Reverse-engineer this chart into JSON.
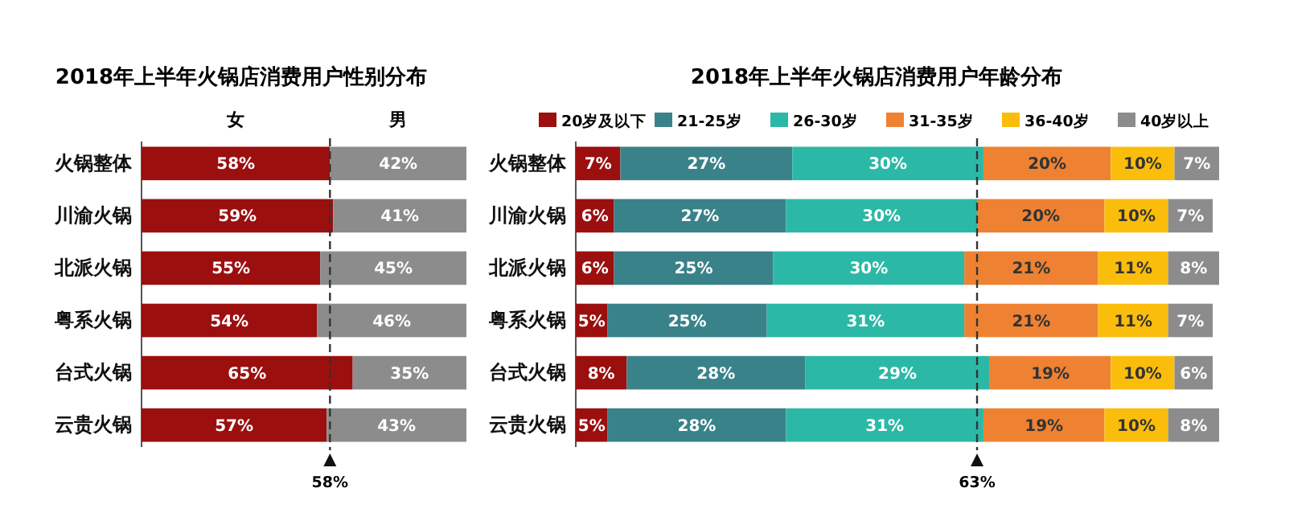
{
  "chart_data": [
    {
      "type": "bar",
      "orientation": "horizontal",
      "stacked": true,
      "title": "2018年上半年火锅店消费用户性别分布",
      "categories": [
        "火锅整体",
        "川渝火锅",
        "北派火锅",
        "粤系火锅",
        "台式火锅",
        "云贵火锅"
      ],
      "xlim": [
        0,
        100
      ],
      "tick_labels": "y",
      "series": [
        {
          "name": "女",
          "color": "#9b0f0f",
          "values": [
            58,
            59,
            55,
            54,
            65,
            57
          ],
          "value_labels": [
            "58%",
            "59%",
            "55%",
            "54%",
            "65%",
            "57%"
          ]
        },
        {
          "name": "男",
          "color": "#8c8c8c",
          "values": [
            42,
            41,
            45,
            46,
            35,
            43
          ],
          "value_labels": [
            "42%",
            "41%",
            "45%",
            "46%",
            "35%",
            "43%"
          ]
        }
      ],
      "ref_lines": [
        {
          "axis": "x",
          "value": 58,
          "label": "58%",
          "line_style": "dashed"
        }
      ]
    },
    {
      "type": "bar",
      "orientation": "horizontal",
      "stacked": true,
      "title": "2018年上半年火锅店消费用户年龄分布",
      "categories": [
        "火锅整体",
        "川渝火锅",
        "北派火锅",
        "粤系火锅",
        "台式火锅",
        "云贵火锅"
      ],
      "xlim": [
        0,
        101
      ],
      "tick_labels": "y",
      "legend": "top right",
      "series": [
        {
          "name": "20岁及以下",
          "color": "#9b0f0f",
          "values": [
            7,
            6,
            6,
            5,
            8,
            5
          ],
          "value_labels": [
            "7%",
            "6%",
            "6%",
            "5%",
            "8%",
            "5%"
          ]
        },
        {
          "name": "21-25岁",
          "color": "#3a8289",
          "values": [
            27,
            27,
            25,
            25,
            28,
            28
          ],
          "value_labels": [
            "27%",
            "27%",
            "25%",
            "25%",
            "28%",
            "28%"
          ]
        },
        {
          "name": "26-30岁",
          "color": "#2cb8a6",
          "values": [
            30,
            30,
            30,
            31,
            29,
            31
          ],
          "value_labels": [
            "30%",
            "30%",
            "30%",
            "31%",
            "29%",
            "31%"
          ]
        },
        {
          "name": "31-35岁",
          "color": "#ee8232",
          "values": [
            20,
            20,
            21,
            21,
            19,
            19
          ],
          "value_labels": [
            "20%",
            "20%",
            "21%",
            "21%",
            "19%",
            "19%"
          ]
        },
        {
          "name": "36-40岁",
          "color": "#fbbd0b",
          "values": [
            10,
            10,
            11,
            11,
            10,
            10
          ],
          "value_labels": [
            "10%",
            "10%",
            "11%",
            "11%",
            "10%",
            "10%"
          ]
        },
        {
          "name": "40岁以上",
          "color": "#8c8c8c",
          "values": [
            7,
            7,
            8,
            7,
            6,
            8
          ],
          "value_labels": [
            "7%",
            "7%",
            "8%",
            "7%",
            "6%",
            "8%"
          ]
        }
      ],
      "ref_lines": [
        {
          "axis": "x",
          "value": 63,
          "label": "63%",
          "line_style": "dashed"
        }
      ]
    }
  ]
}
